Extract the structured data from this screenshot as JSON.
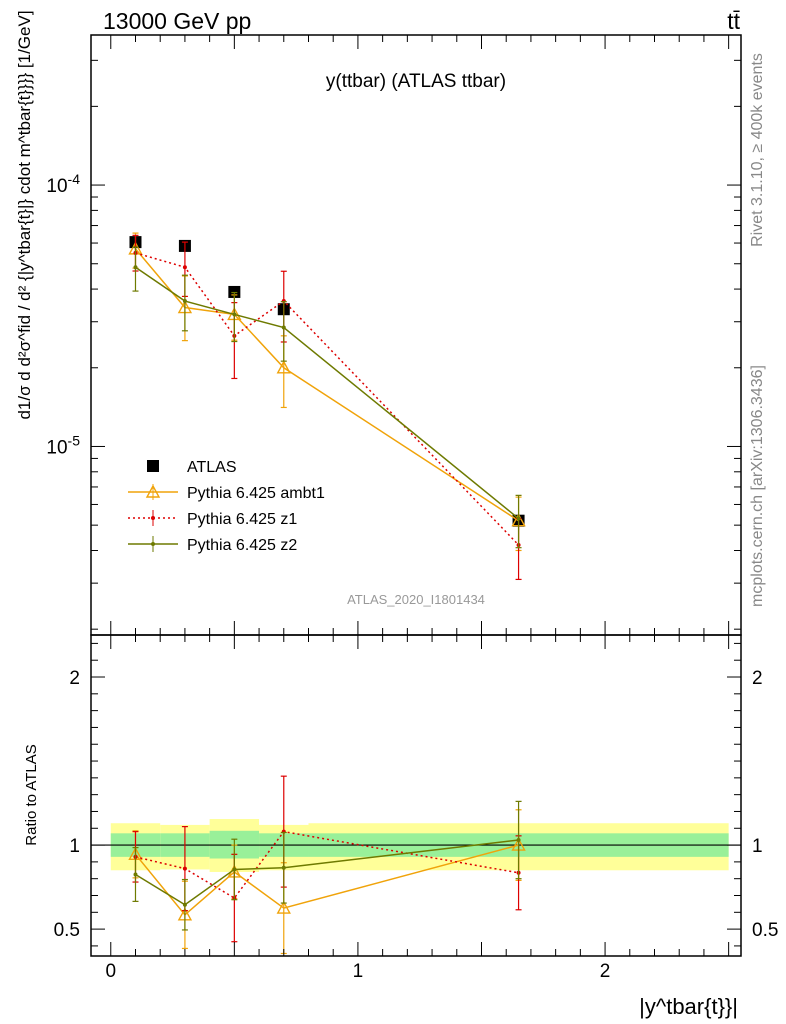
{
  "header": {
    "left": "13000 GeV pp",
    "right": "tt̄",
    "side_top": "Rivet 3.1.10, ≥ 400k events",
    "side_bottom": "mcplots.cern.ch [arXiv:1306.3436]"
  },
  "chart_data": [
    {
      "type": "line",
      "title": "y(ttbar) (ATLAS ttbar)",
      "ylabel": "d1/σ d d²σ^fid / d² {|y^tbar{t}|} cdot m^tbar{t}}}} [1/GeV]",
      "xlabel": "",
      "watermark": "ATLAS_2020_I1801434",
      "y_scale": "log",
      "xlim": [
        -0.08,
        2.55
      ],
      "ylim": [
        1.9e-06,
        0.000375
      ],
      "y_ticks": [
        {
          "value": 0.0001,
          "label": "10^-4"
        },
        {
          "value": 1e-05,
          "label": "10^-5"
        }
      ],
      "legend_position": "bottom-left",
      "series": [
        {
          "name": "ATLAS",
          "color": "#000000",
          "style": "marker-square",
          "x": [
            0.1,
            0.3,
            0.5,
            0.7,
            1.65
          ],
          "y": [
            6.05e-05,
            5.85e-05,
            3.9e-05,
            3.35e-05,
            5.2e-06
          ]
        },
        {
          "name": "Pythia 6.425 ambt1",
          "color": "#f0a30a",
          "style": "solid-triangle",
          "x": [
            0.1,
            0.3,
            0.5,
            0.7,
            1.65
          ],
          "y": [
            5.7e-05,
            3.4e-05,
            3.2e-05,
            2e-05,
            5.2e-06
          ],
          "err_low": [
            8.9e-06,
            8.6e-06,
            6.5e-06,
            5.9e-06,
            1.2e-06
          ],
          "err_high": [
            8.5e-06,
            1.09e-05,
            6e-06,
            6.5e-06,
            1.2e-06
          ]
        },
        {
          "name": "Pythia 6.425 z1",
          "color": "#dd0000",
          "style": "dotted-dot",
          "x": [
            0.1,
            0.3,
            0.5,
            0.7,
            1.65
          ],
          "y": [
            5.5e-05,
            4.85e-05,
            2.65e-05,
            3.6e-05,
            4.2e-06
          ],
          "err_low": [
            8.1e-06,
            1.1e-05,
            8.3e-06,
            1.09e-05,
            1.1e-06
          ],
          "err_high": [
            9.2e-06,
            1.2e-05,
            9e-06,
            1.08e-05,
            1.1e-06
          ]
        },
        {
          "name": "Pythia 6.425 z2",
          "color": "#6e7a00",
          "style": "solid-dot",
          "x": [
            0.1,
            0.3,
            0.5,
            0.7,
            1.65
          ],
          "y": [
            4.85e-05,
            3.6e-05,
            3.2e-05,
            2.85e-05,
            5.3e-06
          ],
          "err_low": [
            9.2e-06,
            8.3e-06,
            6.8e-06,
            7.3e-06,
            1.2e-06
          ],
          "err_high": [
            9.4e-06,
            9.2e-06,
            6.8e-06,
            7.3e-06,
            1.2e-06
          ]
        }
      ]
    },
    {
      "type": "line",
      "title": "",
      "ylabel": "Ratio to ATLAS",
      "xlabel": "|y^tbar{t}}|",
      "xlim": [
        -0.08,
        2.55
      ],
      "ylim": [
        0.34,
        2.25
      ],
      "x_ticks": [
        "0",
        "1",
        "2"
      ],
      "y_ticks": [
        "0.5",
        "1",
        "2"
      ],
      "bins": [
        [
          0.0,
          0.2
        ],
        [
          0.2,
          0.4
        ],
        [
          0.4,
          0.6
        ],
        [
          0.6,
          0.8
        ],
        [
          0.8,
          2.5
        ]
      ],
      "band_inner": [
        [
          0.93,
          1.07
        ],
        [
          0.93,
          1.07
        ],
        [
          0.92,
          1.085
        ],
        [
          0.93,
          1.07
        ],
        [
          0.93,
          1.07
        ]
      ],
      "band_outer": [
        [
          0.85,
          1.13
        ],
        [
          0.855,
          1.12
        ],
        [
          0.84,
          1.155
        ],
        [
          0.85,
          1.12
        ],
        [
          0.85,
          1.13
        ]
      ],
      "series": [
        {
          "name": "Pythia 6.425 ambt1",
          "color": "#f0a30a",
          "style": "solid-triangle",
          "x": [
            0.1,
            0.3,
            0.5,
            0.7,
            1.65
          ],
          "y": [
            0.945,
            0.585,
            0.84,
            0.625,
            1.0
          ],
          "err_low": [
            0.14,
            0.2,
            0.16,
            0.27,
            0.21
          ],
          "err_high": [
            0.14,
            0.2,
            0.16,
            0.27,
            0.21
          ]
        },
        {
          "name": "Pythia 6.425 z1",
          "color": "#dd0000",
          "style": "dotted-dot",
          "x": [
            0.1,
            0.3,
            0.5,
            0.7,
            1.65
          ],
          "y": [
            0.93,
            0.86,
            0.685,
            1.08,
            0.835
          ],
          "err_low": [
            0.15,
            0.25,
            0.26,
            0.33,
            0.22
          ],
          "err_high": [
            0.15,
            0.25,
            0.26,
            0.33,
            0.22
          ]
        },
        {
          "name": "Pythia 6.425 z2",
          "color": "#6e7a00",
          "style": "solid-dot",
          "x": [
            0.1,
            0.3,
            0.5,
            0.7,
            1.65
          ],
          "y": [
            0.825,
            0.645,
            0.855,
            0.865,
            1.03
          ],
          "err_low": [
            0.16,
            0.15,
            0.18,
            0.21,
            0.23
          ],
          "err_high": [
            0.16,
            0.15,
            0.18,
            0.21,
            0.23
          ]
        }
      ]
    }
  ]
}
